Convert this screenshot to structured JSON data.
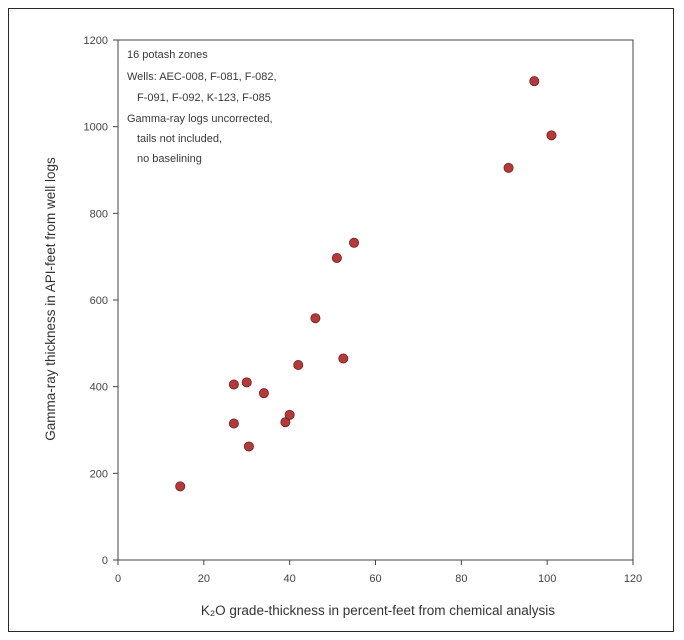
{
  "chart_data": {
    "type": "scatter",
    "title": "",
    "xlabel": "K₂O grade-thickness in percent-feet from chemical analysis",
    "ylabel": "Gamma-ray thickness in API-feet from well logs",
    "xlim": [
      0,
      120
    ],
    "ylim": [
      0,
      1200
    ],
    "x_ticks": [
      0,
      20,
      40,
      60,
      80,
      100,
      120
    ],
    "y_ticks": [
      0,
      200,
      400,
      600,
      800,
      1000,
      1200
    ],
    "grid": false,
    "legend": null,
    "annotation_lines": [
      "16 potash zones",
      "Wells:  AEC-008, F-081, F-082,",
      "F-091, F-092, K-123, F-085",
      "Gamma-ray logs uncorrected,",
      "tails not included,",
      "no baselining"
    ],
    "points": [
      {
        "x": 14.5,
        "y": 170
      },
      {
        "x": 27,
        "y": 315
      },
      {
        "x": 27,
        "y": 405
      },
      {
        "x": 30,
        "y": 410
      },
      {
        "x": 30.5,
        "y": 262
      },
      {
        "x": 34,
        "y": 385
      },
      {
        "x": 39,
        "y": 318
      },
      {
        "x": 40,
        "y": 335
      },
      {
        "x": 42,
        "y": 450
      },
      {
        "x": 46,
        "y": 558
      },
      {
        "x": 51,
        "y": 697
      },
      {
        "x": 52.5,
        "y": 465
      },
      {
        "x": 55,
        "y": 732
      },
      {
        "x": 91,
        "y": 905
      },
      {
        "x": 97,
        "y": 1105
      },
      {
        "x": 101,
        "y": 980
      }
    ],
    "marker_color": "#b33a3a",
    "marker_edge": "#7a2020",
    "axis_color": "#444444"
  }
}
